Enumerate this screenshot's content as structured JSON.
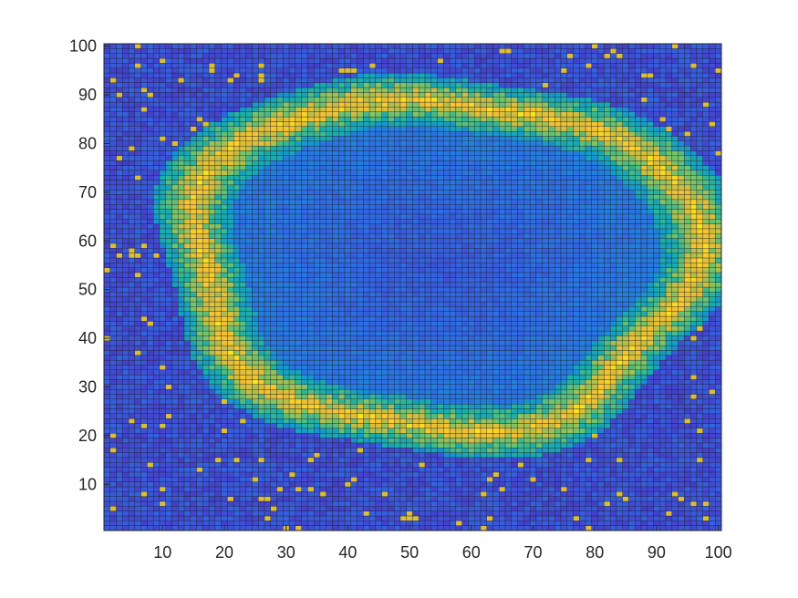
{
  "chart_data": {
    "type": "heatmap",
    "title": "",
    "xlabel": "",
    "ylabel": "",
    "xlim": [
      1,
      100
    ],
    "ylim": [
      1,
      100
    ],
    "grid_size": [
      100,
      100
    ],
    "x_ticks": [
      "10",
      "20",
      "30",
      "40",
      "50",
      "60",
      "70",
      "80",
      "90",
      "100"
    ],
    "y_ticks": [
      "10",
      "20",
      "30",
      "40",
      "50",
      "60",
      "70",
      "80",
      "90",
      "100"
    ],
    "colormap": "parula",
    "colors": {
      "low": "#3c3ba3",
      "mid_low": "#2b6fe2",
      "mid": "#1fa5c8",
      "mid_high": "#7cc36a",
      "high": "#f7c43a",
      "cell_edge": "#1a1a1a",
      "axis": "#262626"
    },
    "pattern": {
      "description_values": {
        "center": [
          55,
          55
        ],
        "ring_radius_x": 40,
        "ring_radius_y": 36,
        "inner_level": 0.18,
        "ring_level": 0.92,
        "outer_level": 0.12
      }
    }
  }
}
